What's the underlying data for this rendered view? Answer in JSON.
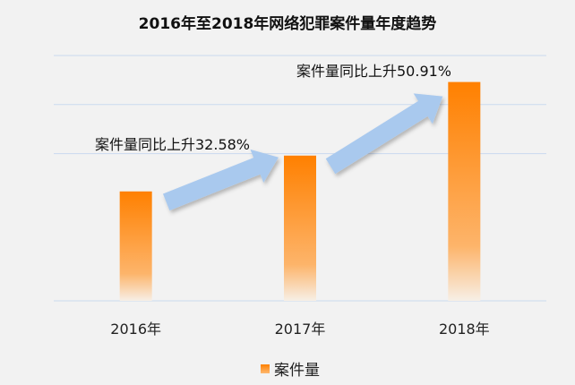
{
  "chart_data": {
    "type": "bar",
    "title": "2016年至2018年网络犯罪案件量年度趋势",
    "categories": [
      "2016年",
      "2017年",
      "2018年"
    ],
    "series": [
      {
        "name": "案件量",
        "values": [
          2.23,
          2.96,
          4.46
        ]
      }
    ],
    "ylim": [
      0,
      5
    ],
    "y_axis_labels_shown": false,
    "gridlines": [
      0,
      3,
      4,
      5
    ],
    "grid": true,
    "legend_position": "bottom",
    "annotations": [
      {
        "text": "案件量同比上升32.58%",
        "from": "2016年",
        "to": "2017年"
      },
      {
        "text": "案件量同比上升50.91%",
        "from": "2017年",
        "to": "2018年"
      }
    ],
    "colors": {
      "bar_top": "#ff8000",
      "bar_bottom": "#fbe9d9",
      "arrow": "#a9c9ee",
      "grid": "#c9d9ef"
    }
  }
}
